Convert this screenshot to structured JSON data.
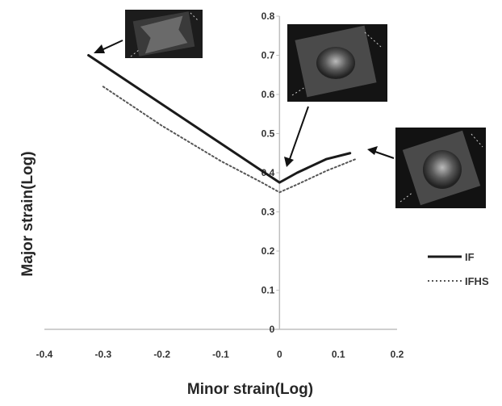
{
  "chart_data": {
    "type": "line",
    "title": "",
    "xlabel": "Minor strain(Log)",
    "ylabel": "Major strain(Log)",
    "xlim": [
      -0.4,
      0.2
    ],
    "ylim": [
      0,
      0.8
    ],
    "x_ticks": [
      -0.4,
      -0.3,
      -0.2,
      -0.1,
      0,
      0.1,
      0.2
    ],
    "y_ticks": [
      0,
      0.1,
      0.2,
      0.3,
      0.4,
      0.5,
      0.6,
      0.7,
      0.8
    ],
    "x_tick_labels": [
      "-0.4",
      "-0.3",
      "-0.2",
      "-0.1",
      "0",
      "0.1",
      "0.2"
    ],
    "y_tick_labels": [
      "0",
      "0.1",
      "0.2",
      "0.3",
      "0.4",
      "0.5",
      "0.6",
      "0.7",
      "0.8"
    ],
    "grid": false,
    "legend_position": "right",
    "series": [
      {
        "name": "IF",
        "style": "solid",
        "color": "#1a1a1a",
        "points": [
          [
            -0.325,
            0.7
          ],
          [
            -0.2,
            0.575
          ],
          [
            -0.1,
            0.475
          ],
          [
            -0.03,
            0.405
          ],
          [
            0,
            0.375
          ],
          [
            0.03,
            0.4
          ],
          [
            0.08,
            0.435
          ],
          [
            0.12,
            0.45
          ]
        ]
      },
      {
        "name": "IFHS",
        "style": "dotted",
        "color": "#555555",
        "points": [
          [
            -0.3,
            0.62
          ],
          [
            -0.2,
            0.52
          ],
          [
            -0.1,
            0.43
          ],
          [
            -0.03,
            0.375
          ],
          [
            0,
            0.35
          ],
          [
            0.03,
            0.37
          ],
          [
            0.08,
            0.405
          ],
          [
            0.13,
            0.435
          ]
        ]
      }
    ],
    "annotations": [
      {
        "name": "uniaxial-specimen-photo",
        "points_to": [
          -0.325,
          0.7
        ]
      },
      {
        "name": "plane-strain-specimen-photo",
        "points_to": [
          0,
          0.375
        ]
      },
      {
        "name": "biaxial-specimen-photo",
        "points_to": [
          0.12,
          0.45
        ]
      }
    ]
  }
}
